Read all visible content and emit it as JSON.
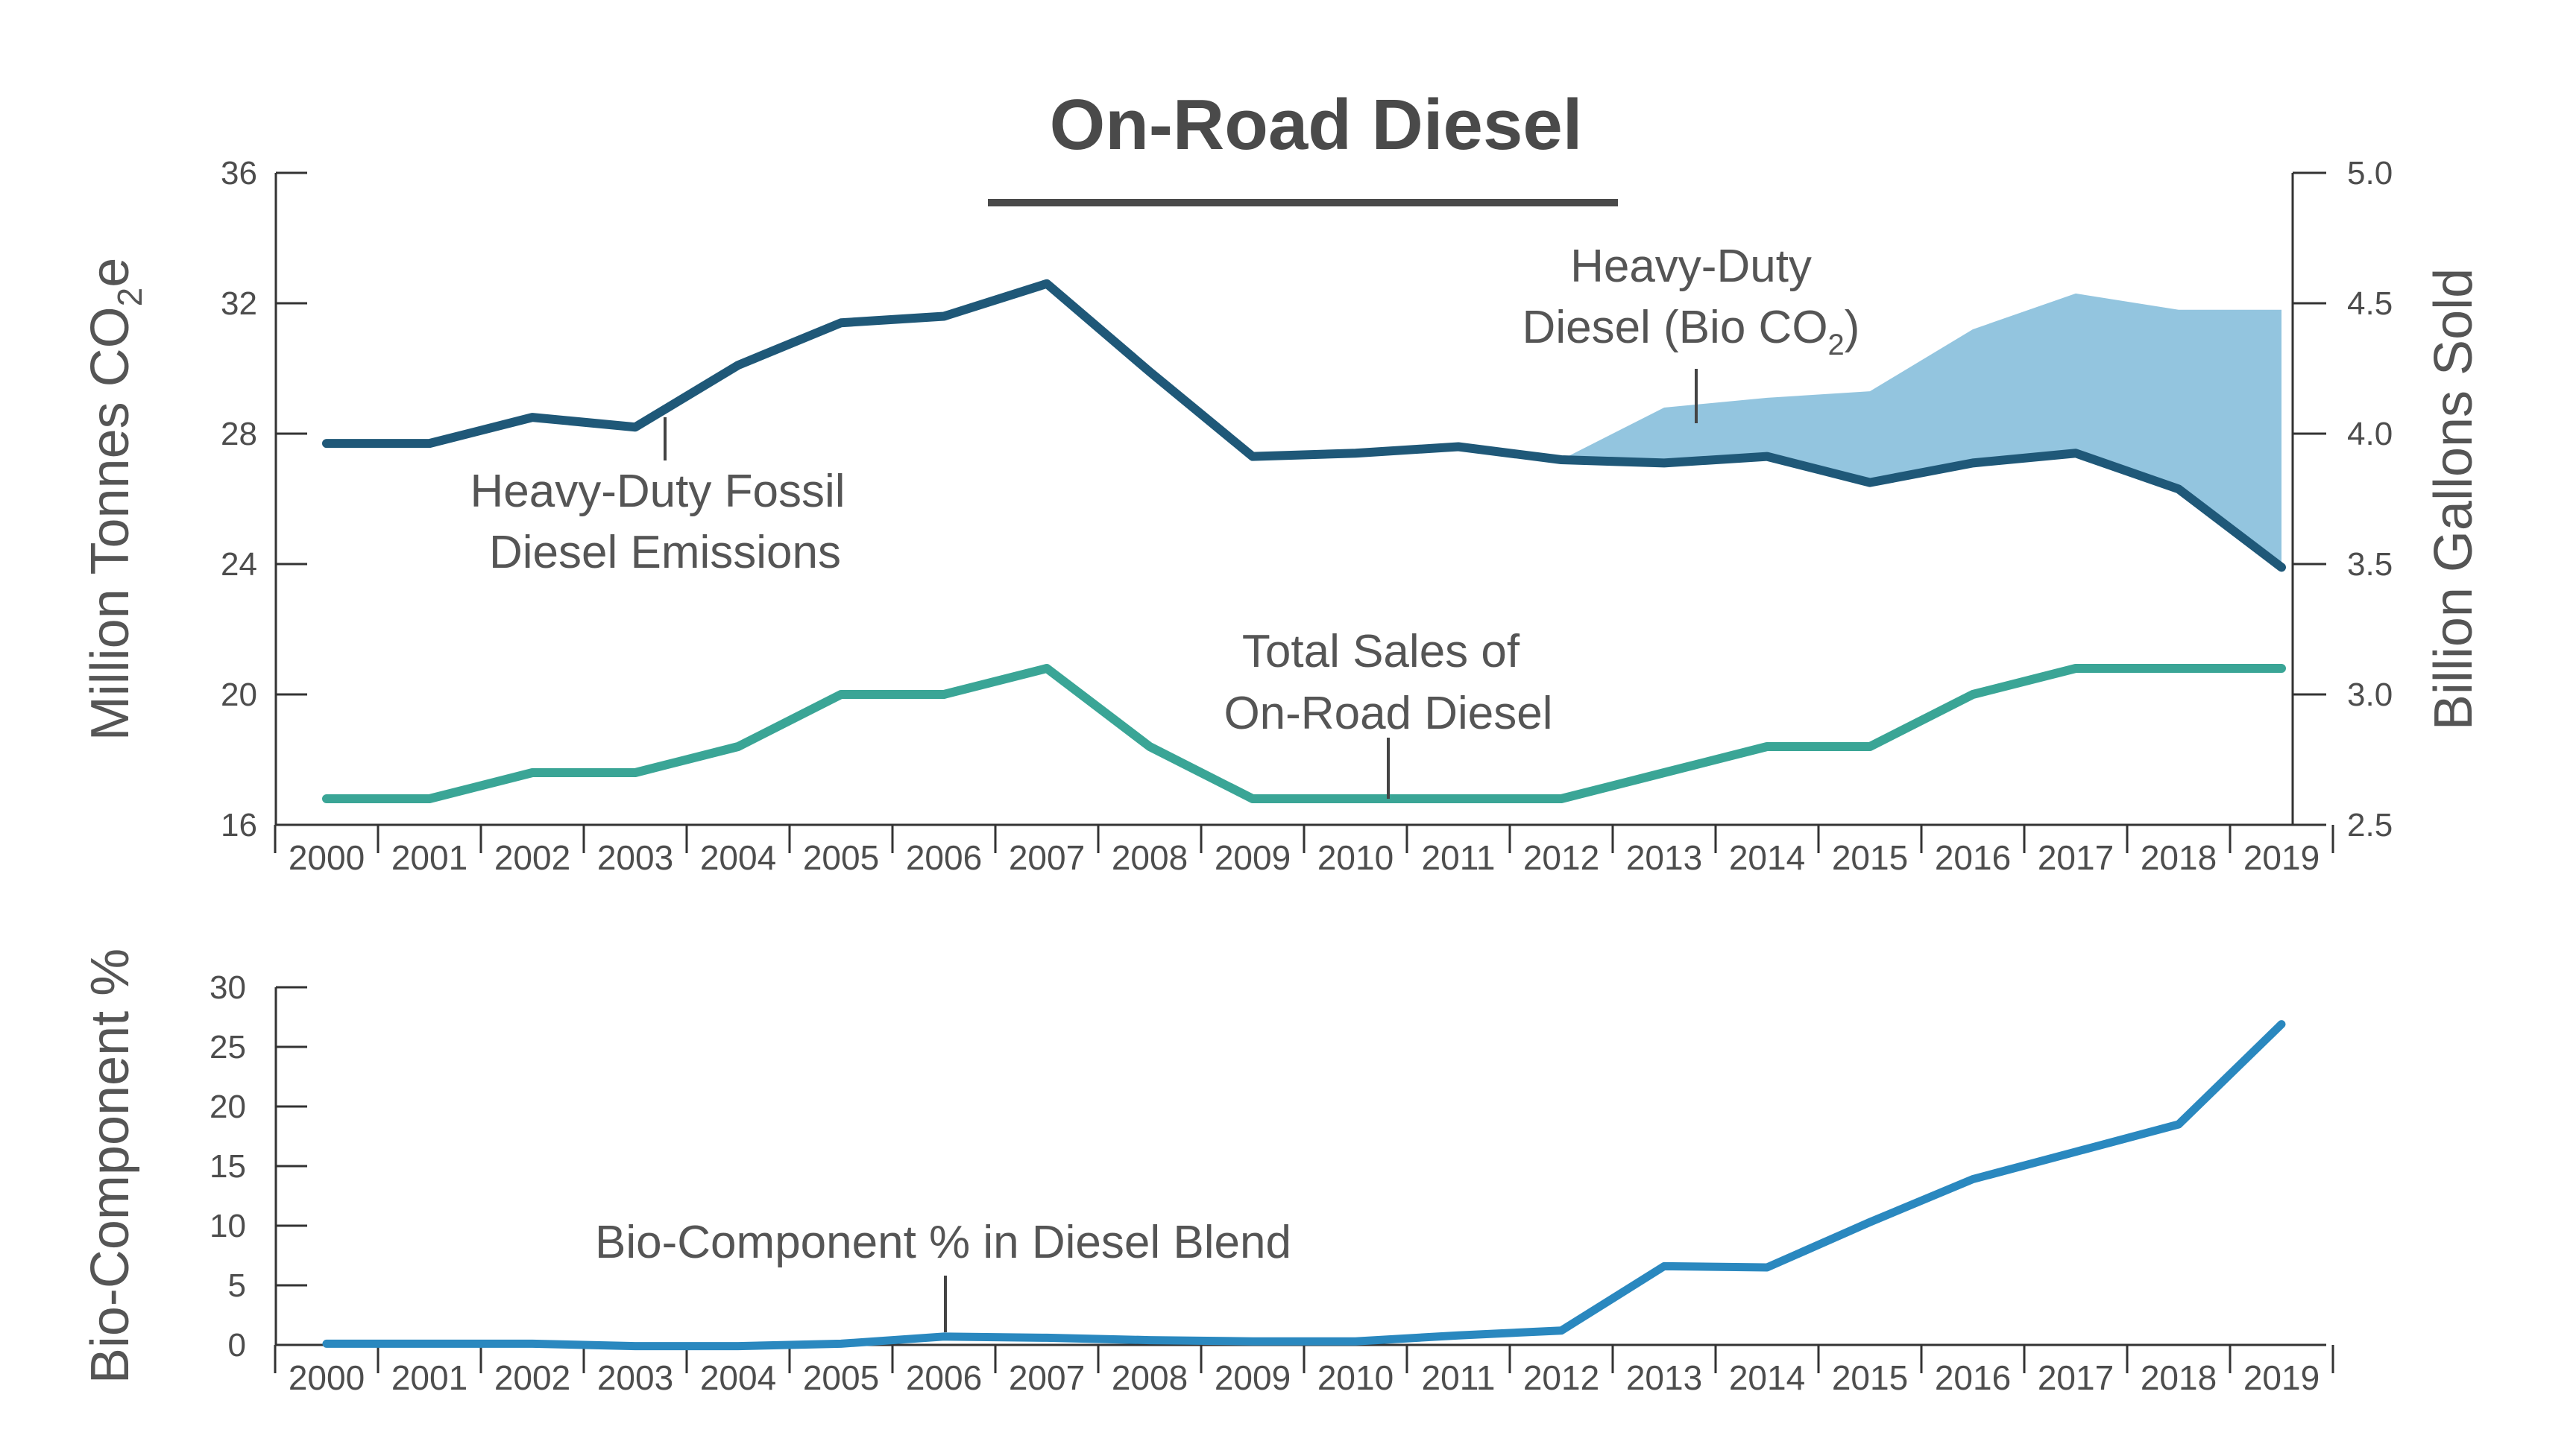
{
  "colors": {
    "fossil": "#1f5878",
    "bio_area": "#93c5df",
    "sales": "#3aa596",
    "bio_pct": "#2a88bf",
    "text": "#555555",
    "axis": "#333333"
  },
  "chart_data": [
    {
      "type": "line",
      "title": "On-Road Diesel",
      "x": [
        "2000",
        "2001",
        "2002",
        "2003",
        "2004",
        "2005",
        "2006",
        "2007",
        "2008",
        "2009",
        "2010",
        "2011",
        "2012",
        "2013",
        "2014",
        "2015",
        "2016",
        "2017",
        "2018",
        "2019"
      ],
      "ylabel_left_main": "Million Tonnes CO",
      "ylabel_left_sub": "2",
      "ylabel_left_tail": "e",
      "ylabel_right": "Billion Gallons Sold",
      "ylim_left": [
        16,
        36
      ],
      "yticks_left": [
        "16",
        "20",
        "24",
        "28",
        "32",
        "36"
      ],
      "ylim_right": [
        2.5,
        5.0
      ],
      "yticks_right": [
        "2.5",
        "3.0",
        "3.5",
        "4.0",
        "4.5",
        "5.0"
      ],
      "series": [
        {
          "name": "Heavy-Duty Fossil Diesel Emissions",
          "axis": "left",
          "values": [
            27.7,
            27.7,
            28.5,
            28.2,
            30.1,
            31.4,
            31.6,
            32.6,
            29.9,
            27.3,
            27.4,
            27.6,
            27.2,
            27.1,
            27.3,
            26.5,
            27.1,
            27.4,
            26.3,
            23.9
          ]
        },
        {
          "name": "Heavy-Duty Diesel (Bio CO2)",
          "axis": "left",
          "type": "area",
          "x_start": "2012",
          "upper": [
            27.2,
            28.8,
            29.1,
            29.3,
            31.2,
            32.3,
            31.8,
            31.8
          ],
          "lower": [
            27.2,
            27.1,
            27.3,
            26.5,
            27.1,
            27.4,
            26.3,
            23.9
          ]
        },
        {
          "name": "Total Sales of On-Road Diesel",
          "axis": "right",
          "values": [
            2.6,
            2.6,
            2.7,
            2.7,
            2.8,
            3.0,
            3.0,
            3.1,
            2.8,
            2.6,
            2.6,
            2.6,
            2.6,
            2.7,
            2.8,
            2.8,
            3.0,
            3.1,
            3.1,
            3.1
          ]
        }
      ],
      "annotations": {
        "fossil_line1": "Heavy-Duty Fossil",
        "fossil_line2": "Diesel Emissions",
        "bio_line1": "Heavy-Duty",
        "bio_line2_main": "Diesel (Bio CO",
        "bio_line2_sub": "2",
        "bio_line2_tail": ")",
        "sales_line1": "Total Sales of",
        "sales_line2": "On-Road Diesel"
      },
      "grid": false
    },
    {
      "type": "line",
      "x": [
        "2000",
        "2001",
        "2002",
        "2003",
        "2004",
        "2005",
        "2006",
        "2007",
        "2008",
        "2009",
        "2010",
        "2011",
        "2012",
        "2013",
        "2014",
        "2015",
        "2016",
        "2017",
        "2018",
        "2019"
      ],
      "ylabel": "Bio-Component %",
      "ylim": [
        0,
        30
      ],
      "yticks": [
        "0",
        "5",
        "10",
        "15",
        "20",
        "25",
        "30"
      ],
      "series": [
        {
          "name": "Bio-Component % in Diesel Blend",
          "values": [
            0.1,
            0.1,
            0.1,
            -0.1,
            -0.1,
            0.1,
            0.7,
            0.6,
            0.4,
            0.3,
            0.3,
            0.8,
            1.2,
            6.6,
            6.5,
            10.3,
            13.9,
            16.2,
            18.5,
            26.9
          ]
        }
      ],
      "annotation": "Bio-Component % in Diesel Blend",
      "grid": false
    }
  ]
}
